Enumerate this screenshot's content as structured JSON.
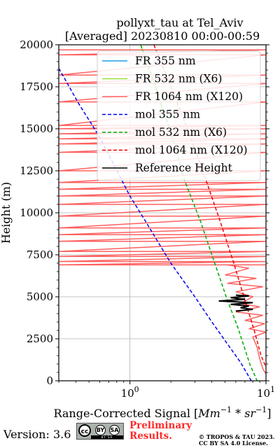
{
  "chart_data": {
    "type": "line",
    "title_line1": "pollyxt_tau at Tel_Aviv",
    "title_line2": "[Averaged] 20230810 00:00-00:59",
    "xlabel_prefix": "Range-Corrected Signal [",
    "xlabel_math": "Mm",
    "xlabel_exp1": "−1",
    "xlabel_mid": " * ",
    "xlabel_math2": "sr",
    "xlabel_exp2": "−1",
    "xlabel_suffix": "]",
    "ylabel": "Height (m)",
    "x_scale": "log",
    "xlim": [
      0.3,
      10
    ],
    "ylim": [
      0,
      20000
    ],
    "x_ticks": [
      {
        "value": 1,
        "base": "10",
        "exp": "0"
      },
      {
        "value": 10,
        "base": "10",
        "exp": "1"
      }
    ],
    "y_ticks": [
      {
        "value": 0,
        "label": "0"
      },
      {
        "value": 2500,
        "label": "2500"
      },
      {
        "value": 5000,
        "label": "5000"
      },
      {
        "value": 7500,
        "label": "7500"
      },
      {
        "value": 10000,
        "label": "10000"
      },
      {
        "value": 12500,
        "label": "12500"
      },
      {
        "value": 15000,
        "label": "15000"
      },
      {
        "value": 17500,
        "label": "17500"
      },
      {
        "value": 20000,
        "label": "20000"
      }
    ],
    "grid": true,
    "legend_position": "top-right",
    "series": [
      {
        "name": "FR 355 nm",
        "color": "#1f9fe0",
        "style": "solid",
        "points": []
      },
      {
        "name": "FR 532 nm (X6)",
        "color": "#9adf3a",
        "style": "solid",
        "points": [
          [
            1.2,
            20000
          ],
          [
            1.3,
            19000
          ],
          [
            1.45,
            18000
          ],
          [
            1.6,
            17000
          ],
          [
            1.75,
            16000
          ],
          [
            1.85,
            15500
          ]
        ]
      },
      {
        "name": "FR 1064 nm (X120)",
        "color": "#ff6060",
        "style": "solid",
        "points": [
          [
            0.3,
            19700
          ],
          [
            10,
            19700
          ],
          [
            0.3,
            19400
          ],
          [
            10,
            19400
          ],
          [
            0.3,
            18200
          ],
          [
            10,
            18200
          ],
          [
            0.3,
            17700
          ],
          [
            10,
            17700
          ],
          [
            0.3,
            16600
          ],
          [
            10,
            16600
          ],
          [
            0.3,
            15200
          ],
          [
            10,
            15200
          ],
          [
            0.3,
            15000
          ],
          [
            10,
            15000
          ],
          [
            0.3,
            14700
          ],
          [
            10,
            14700
          ],
          [
            0.3,
            14400
          ],
          [
            10,
            14400
          ],
          [
            0.3,
            14100
          ],
          [
            10,
            14100
          ],
          [
            0.3,
            13600
          ],
          [
            10,
            13600
          ],
          [
            0.3,
            12500
          ],
          [
            10,
            12500
          ],
          [
            0.3,
            11800
          ],
          [
            10,
            11800
          ],
          [
            0.3,
            11400
          ],
          [
            10,
            11400
          ],
          [
            0.3,
            11000
          ],
          [
            10,
            11000
          ],
          [
            0.3,
            10500
          ],
          [
            10,
            10500
          ],
          [
            0.3,
            9800
          ],
          [
            10,
            9800
          ],
          [
            0.3,
            9100
          ],
          [
            10,
            9100
          ],
          [
            0.3,
            8700
          ],
          [
            10,
            8700
          ],
          [
            0.3,
            8300
          ],
          [
            10,
            8300
          ],
          [
            0.3,
            7700
          ],
          [
            10,
            7700
          ],
          [
            0.3,
            7400
          ],
          [
            10,
            7400
          ],
          [
            0.3,
            7100
          ],
          [
            10,
            7100
          ],
          [
            0.3,
            6900
          ],
          [
            10,
            6900
          ],
          [
            5.2,
            6900
          ],
          [
            7.5,
            6700
          ],
          [
            5.0,
            6300
          ],
          [
            8.5,
            6100
          ],
          [
            5.2,
            5800
          ],
          [
            9.5,
            5600
          ],
          [
            6.0,
            5300
          ],
          [
            8.0,
            5000
          ],
          [
            6.5,
            4600
          ],
          [
            9.0,
            4400
          ],
          [
            6.0,
            4100
          ],
          [
            9.5,
            3900
          ],
          [
            7.0,
            3600
          ],
          [
            9.8,
            3400
          ],
          [
            7.5,
            3100
          ],
          [
            10,
            2900
          ],
          [
            8.0,
            2600
          ],
          [
            8.6,
            2000
          ],
          [
            9.0,
            1300
          ],
          [
            9.5,
            700
          ],
          [
            10,
            400
          ]
        ]
      },
      {
        "name": "mol 355 nm",
        "color": "#0000ee",
        "style": "dashed",
        "points": [
          [
            0.3,
            18600
          ],
          [
            0.42,
            16500
          ],
          [
            0.6,
            14500
          ],
          [
            1.0,
            11000
          ],
          [
            1.3,
            9500
          ],
          [
            2.0,
            7000
          ],
          [
            3.0,
            5000
          ],
          [
            4.0,
            3500
          ],
          [
            5.2,
            2200
          ],
          [
            6.5,
            1100
          ],
          [
            7.8,
            0
          ]
        ]
      },
      {
        "name": "mol 532 nm (X6)",
        "color": "#00aa00",
        "style": "dashed",
        "points": [
          [
            1.2,
            20000
          ],
          [
            1.55,
            17500
          ],
          [
            2.05,
            14500
          ],
          [
            2.5,
            12000
          ],
          [
            3.3,
            9500
          ],
          [
            4.2,
            7000
          ],
          [
            5.2,
            4800
          ],
          [
            6.2,
            3200
          ],
          [
            7.6,
            1000
          ],
          [
            8.6,
            0
          ]
        ]
      },
      {
        "name": "mol 1064 nm (X120)",
        "color": "#ee0000",
        "style": "dashed",
        "points": [
          [
            1.5,
            20000
          ],
          [
            2.0,
            17500
          ],
          [
            2.8,
            14500
          ],
          [
            3.6,
            12000
          ],
          [
            4.6,
            9500
          ],
          [
            5.8,
            7000
          ],
          [
            7.0,
            4800
          ],
          [
            8.2,
            3000
          ],
          [
            9.2,
            1500
          ],
          [
            10,
            800
          ]
        ]
      },
      {
        "name": "Reference Height",
        "color": "#000000",
        "style": "solid",
        "points": [
          [
            6.0,
            5100
          ],
          [
            7.5,
            5050
          ],
          [
            5.5,
            4950
          ],
          [
            7.0,
            4850
          ],
          [
            4.5,
            4750
          ],
          [
            8.0,
            4650
          ],
          [
            5.5,
            4550
          ],
          [
            7.5,
            4450
          ],
          [
            6.5,
            4350
          ],
          [
            8.0,
            4250
          ],
          [
            6.0,
            4150
          ]
        ]
      }
    ]
  },
  "footer": {
    "version": "Version: 3.6",
    "cc_label": "cc",
    "by_label": "BY",
    "sa_label": "SA",
    "cc_strip": "BY   SA",
    "preliminary_line1": "Preliminary",
    "preliminary_line2": "Results.",
    "copyright_line1": "© TROPOS & TAU 2023.",
    "copyright_line2": "CC BY SA 4.0 License."
  }
}
